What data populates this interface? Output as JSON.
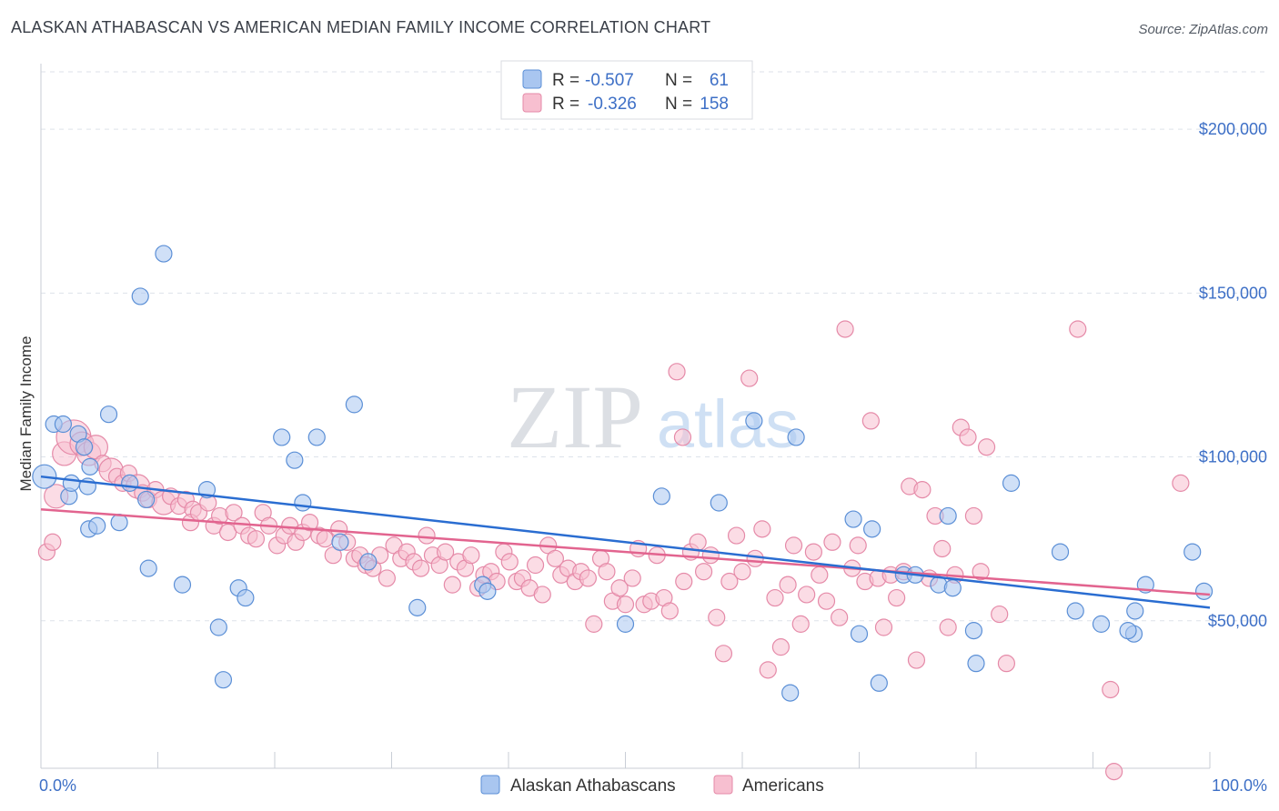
{
  "header": {
    "title": "ALASKAN ATHABASCAN VS AMERICAN MEDIAN FAMILY INCOME CORRELATION CHART",
    "source": "Source: ZipAtlas.com"
  },
  "watermark": {
    "zip": "ZIP",
    "atlas": "atlas"
  },
  "legend_top": [
    {
      "r_label": "R =",
      "r_value": "-0.507",
      "n_label": "N =",
      "n_value": "61"
    },
    {
      "r_label": "R =",
      "r_value": "-0.326",
      "n_label": "N =",
      "n_value": "158"
    }
  ],
  "chart_data": {
    "type": "scatter",
    "title": "ALASKAN ATHABASCAN VS AMERICAN MEDIAN FAMILY INCOME CORRELATION CHART",
    "xlabel": "",
    "ylabel": "Median Family Income",
    "xlim": [
      0,
      100
    ],
    "ylim": [
      5000,
      220000
    ],
    "x_tick_labels": [
      "0.0%",
      "100.0%"
    ],
    "y_ticks": [
      50000,
      100000,
      150000,
      200000
    ],
    "y_tick_labels": [
      "$50,000",
      "$100,000",
      "$150,000",
      "$200,000"
    ],
    "grid": true,
    "legend_position": "top-center",
    "colors": {
      "athabascan_fill": "#a9c6f0",
      "athabascan_stroke": "#5b8fd6",
      "athabascan_line": "#2a6dd1",
      "american_fill": "#f7bfd0",
      "american_stroke": "#e58aa8",
      "american_line": "#e2648f",
      "axis_text": "#3d6fc6",
      "grid": "#dde2ea"
    },
    "series": [
      {
        "name": "Alaskan Athabascans",
        "r": -0.507,
        "n": 61,
        "trend": {
          "x": [
            0,
            100
          ],
          "y": [
            94000,
            54000
          ]
        },
        "points": [
          [
            0.3,
            94000,
            2
          ],
          [
            1.1,
            110000,
            1
          ],
          [
            1.9,
            110000,
            1
          ],
          [
            2.4,
            88000,
            1
          ],
          [
            3.2,
            107000,
            1
          ],
          [
            3.7,
            103000,
            1
          ],
          [
            2.6,
            92000,
            1
          ],
          [
            4.2,
            97000,
            1
          ],
          [
            4.0,
            91000,
            1
          ],
          [
            5.8,
            113000,
            1
          ],
          [
            4.1,
            78000,
            1
          ],
          [
            4.8,
            79000,
            1
          ],
          [
            6.7,
            80000,
            1
          ],
          [
            7.6,
            92000,
            1
          ],
          [
            9.0,
            87000,
            1
          ],
          [
            10.5,
            162000,
            1
          ],
          [
            8.5,
            149000,
            1
          ],
          [
            9.2,
            66000,
            1
          ],
          [
            12.1,
            61000,
            1
          ],
          [
            14.2,
            90000,
            1
          ],
          [
            15.2,
            48000,
            1
          ],
          [
            15.6,
            32000,
            1
          ],
          [
            16.9,
            60000,
            1
          ],
          [
            17.5,
            57000,
            1
          ],
          [
            20.6,
            106000,
            1
          ],
          [
            21.7,
            99000,
            1
          ],
          [
            22.4,
            86000,
            1
          ],
          [
            23.6,
            106000,
            1
          ],
          [
            25.6,
            74000,
            1
          ],
          [
            26.8,
            116000,
            1
          ],
          [
            28.0,
            68000,
            1
          ],
          [
            32.2,
            54000,
            1
          ],
          [
            37.8,
            61000,
            1
          ],
          [
            38.2,
            59000,
            1
          ],
          [
            50.0,
            49000,
            1
          ],
          [
            53.1,
            88000,
            1
          ],
          [
            58.0,
            86000,
            1
          ],
          [
            61.0,
            111000,
            1
          ],
          [
            64.6,
            106000,
            1
          ],
          [
            64.1,
            28000,
            1
          ],
          [
            69.5,
            81000,
            1
          ],
          [
            70.0,
            46000,
            1
          ],
          [
            71.1,
            78000,
            1
          ],
          [
            71.7,
            31000,
            1
          ],
          [
            73.8,
            64000,
            1
          ],
          [
            74.8,
            64000,
            1
          ],
          [
            76.8,
            61000,
            1
          ],
          [
            77.6,
            82000,
            1
          ],
          [
            78.0,
            60000,
            1
          ],
          [
            79.8,
            47000,
            1
          ],
          [
            80.0,
            37000,
            1
          ],
          [
            83.0,
            92000,
            1
          ],
          [
            87.2,
            71000,
            1
          ],
          [
            88.5,
            53000,
            1
          ],
          [
            90.7,
            49000,
            1
          ],
          [
            93.5,
            46000,
            1
          ],
          [
            93.6,
            53000,
            1
          ],
          [
            94.5,
            61000,
            1
          ],
          [
            98.5,
            71000,
            1
          ],
          [
            99.5,
            59000,
            1
          ],
          [
            93.0,
            47000,
            1
          ]
        ]
      },
      {
        "name": "Americans",
        "r": -0.326,
        "n": 158,
        "trend": {
          "x": [
            0,
            100
          ],
          "y": [
            84000,
            58000
          ]
        },
        "points": [
          [
            0.5,
            71000,
            1
          ],
          [
            1.0,
            74000,
            1
          ],
          [
            1.3,
            88000,
            2
          ],
          [
            2.0,
            101000,
            2
          ],
          [
            2.8,
            106000,
            3
          ],
          [
            3.5,
            104000,
            2
          ],
          [
            4.1,
            101000,
            2
          ],
          [
            4.7,
            103000,
            2
          ],
          [
            5.3,
            98000,
            1
          ],
          [
            6.0,
            96000,
            2
          ],
          [
            6.5,
            94000,
            1
          ],
          [
            7.0,
            92000,
            1
          ],
          [
            7.5,
            95000,
            1
          ],
          [
            8.3,
            91000,
            2
          ],
          [
            8.7,
            89000,
            1
          ],
          [
            9.2,
            87000,
            1
          ],
          [
            9.8,
            90000,
            1
          ],
          [
            10.5,
            86000,
            2
          ],
          [
            11.1,
            88000,
            1
          ],
          [
            11.8,
            85000,
            1
          ],
          [
            12.4,
            87000,
            1
          ],
          [
            13.0,
            84000,
            1
          ],
          [
            12.8,
            80000,
            1
          ],
          [
            13.5,
            83000,
            1
          ],
          [
            14.3,
            86000,
            1
          ],
          [
            14.8,
            79000,
            1
          ],
          [
            15.3,
            82000,
            1
          ],
          [
            16.0,
            77000,
            1
          ],
          [
            16.5,
            83000,
            1
          ],
          [
            17.2,
            79000,
            1
          ],
          [
            17.8,
            76000,
            1
          ],
          [
            18.4,
            75000,
            1
          ],
          [
            19.0,
            83000,
            1
          ],
          [
            19.5,
            79000,
            1
          ],
          [
            20.2,
            73000,
            1
          ],
          [
            20.8,
            76000,
            1
          ],
          [
            21.3,
            79000,
            1
          ],
          [
            21.8,
            74000,
            1
          ],
          [
            22.4,
            77000,
            1
          ],
          [
            23.0,
            80000,
            1
          ],
          [
            23.8,
            76000,
            1
          ],
          [
            24.3,
            75000,
            1
          ],
          [
            25.0,
            70000,
            1
          ],
          [
            25.5,
            78000,
            1
          ],
          [
            26.2,
            74000,
            1
          ],
          [
            26.8,
            69000,
            1
          ],
          [
            27.3,
            70000,
            1
          ],
          [
            27.8,
            67000,
            1
          ],
          [
            28.4,
            66000,
            1
          ],
          [
            29.0,
            70000,
            1
          ],
          [
            29.6,
            63000,
            1
          ],
          [
            30.2,
            73000,
            1
          ],
          [
            30.8,
            69000,
            1
          ],
          [
            31.3,
            71000,
            1
          ],
          [
            31.9,
            68000,
            1
          ],
          [
            32.5,
            66000,
            1
          ],
          [
            33.0,
            76000,
            1
          ],
          [
            33.5,
            70000,
            1
          ],
          [
            34.1,
            67000,
            1
          ],
          [
            34.6,
            71000,
            1
          ],
          [
            35.2,
            61000,
            1
          ],
          [
            35.7,
            68000,
            1
          ],
          [
            36.3,
            66000,
            1
          ],
          [
            36.8,
            70000,
            1
          ],
          [
            37.4,
            60000,
            1
          ],
          [
            37.9,
            64000,
            1
          ],
          [
            38.5,
            65000,
            1
          ],
          [
            39.0,
            62000,
            1
          ],
          [
            39.6,
            71000,
            1
          ],
          [
            40.1,
            68000,
            1
          ],
          [
            40.7,
            62000,
            1
          ],
          [
            41.2,
            63000,
            1
          ],
          [
            41.8,
            60000,
            1
          ],
          [
            42.3,
            67000,
            1
          ],
          [
            42.9,
            58000,
            1
          ],
          [
            43.4,
            73000,
            1
          ],
          [
            44.0,
            69000,
            1
          ],
          [
            44.5,
            64000,
            1
          ],
          [
            45.1,
            66000,
            1
          ],
          [
            45.7,
            62000,
            1
          ],
          [
            46.2,
            65000,
            1
          ],
          [
            46.8,
            63000,
            1
          ],
          [
            47.3,
            49000,
            1
          ],
          [
            47.9,
            69000,
            1
          ],
          [
            48.4,
            65000,
            1
          ],
          [
            48.9,
            56000,
            1
          ],
          [
            49.5,
            60000,
            1
          ],
          [
            50.0,
            55000,
            1
          ],
          [
            50.6,
            63000,
            1
          ],
          [
            51.1,
            72000,
            1
          ],
          [
            51.6,
            55000,
            1
          ],
          [
            52.2,
            56000,
            1
          ],
          [
            52.7,
            70000,
            1
          ],
          [
            53.3,
            57000,
            1
          ],
          [
            53.8,
            53000,
            1
          ],
          [
            54.4,
            126000,
            1
          ],
          [
            54.9,
            106000,
            1
          ],
          [
            55.0,
            62000,
            1
          ],
          [
            55.6,
            71000,
            1
          ],
          [
            56.2,
            74000,
            1
          ],
          [
            56.7,
            65000,
            1
          ],
          [
            57.3,
            70000,
            1
          ],
          [
            57.8,
            51000,
            1
          ],
          [
            58.4,
            40000,
            1
          ],
          [
            58.9,
            62000,
            1
          ],
          [
            59.5,
            76000,
            1
          ],
          [
            60.0,
            65000,
            1
          ],
          [
            60.6,
            124000,
            1
          ],
          [
            61.1,
            69000,
            1
          ],
          [
            61.7,
            78000,
            1
          ],
          [
            62.2,
            35000,
            1
          ],
          [
            62.8,
            57000,
            1
          ],
          [
            63.3,
            42000,
            1
          ],
          [
            63.9,
            61000,
            1
          ],
          [
            64.4,
            73000,
            1
          ],
          [
            65.0,
            49000,
            1
          ],
          [
            65.5,
            58000,
            1
          ],
          [
            66.1,
            71000,
            1
          ],
          [
            66.6,
            64000,
            1
          ],
          [
            67.2,
            56000,
            1
          ],
          [
            67.7,
            74000,
            1
          ],
          [
            68.3,
            51000,
            1
          ],
          [
            68.8,
            139000,
            1
          ],
          [
            69.4,
            66000,
            1
          ],
          [
            69.9,
            73000,
            1
          ],
          [
            70.5,
            62000,
            1
          ],
          [
            71.0,
            111000,
            1
          ],
          [
            71.6,
            63000,
            1
          ],
          [
            72.1,
            48000,
            1
          ],
          [
            72.7,
            64000,
            1
          ],
          [
            73.2,
            57000,
            1
          ],
          [
            73.8,
            65000,
            1
          ],
          [
            74.3,
            91000,
            1
          ],
          [
            74.9,
            38000,
            1
          ],
          [
            75.4,
            90000,
            1
          ],
          [
            76.0,
            63000,
            1
          ],
          [
            76.5,
            82000,
            1
          ],
          [
            77.1,
            72000,
            1
          ],
          [
            77.6,
            48000,
            1
          ],
          [
            78.2,
            64000,
            1
          ],
          [
            78.7,
            109000,
            1
          ],
          [
            79.3,
            106000,
            1
          ],
          [
            79.8,
            82000,
            1
          ],
          [
            80.4,
            65000,
            1
          ],
          [
            80.9,
            103000,
            1
          ],
          [
            82.0,
            52000,
            1
          ],
          [
            82.6,
            37000,
            1
          ],
          [
            88.7,
            139000,
            1
          ],
          [
            91.5,
            29000,
            1
          ],
          [
            91.8,
            4000,
            1
          ],
          [
            97.5,
            92000,
            1
          ]
        ]
      }
    ]
  }
}
